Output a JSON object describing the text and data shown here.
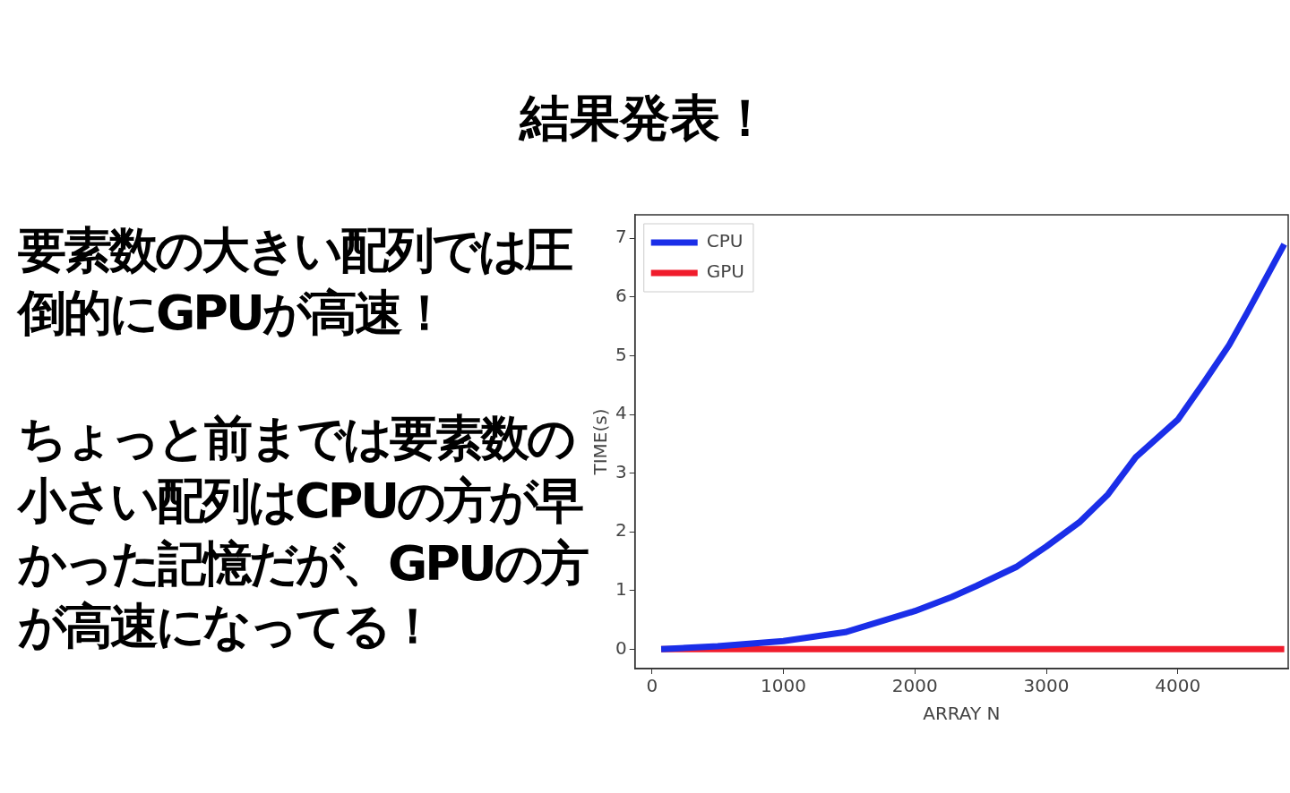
{
  "chart_data": {
    "type": "line",
    "title": "結果発表！",
    "annotations": [
      "要素数の大きい配列では圧倒的にGPUが高速！",
      "ちょっと前までは要素数の小さい配列はCPUの方が早かった記憶だが、GPUの方が高速になってる！"
    ],
    "xlabel": "ARRAY N",
    "ylabel": "TIME(s)",
    "x": [
      70,
      500,
      1000,
      1470,
      2000,
      2280,
      2470,
      2770,
      3000,
      3250,
      3470,
      3680,
      4000,
      4200,
      4390,
      4530,
      4810
    ],
    "series": [
      {
        "name": "CPU",
        "color": "#1a2ee8",
        "values": [
          0.0,
          0.05,
          0.14,
          0.29,
          0.65,
          0.89,
          1.08,
          1.4,
          1.75,
          2.16,
          2.64,
          3.27,
          3.91,
          4.55,
          5.18,
          5.74,
          6.9
        ]
      },
      {
        "name": "GPU",
        "color": "#f01c2c",
        "values": [
          0.0,
          0.0,
          0.0,
          0.0,
          0.0,
          0.0,
          0.0,
          0.0,
          0.0,
          0.0,
          0.0,
          0.0,
          0.0,
          0.0,
          0.0,
          0.0,
          0.0
        ]
      }
    ],
    "xlim": [
      -130,
      4840
    ],
    "xticks": [
      0,
      1000,
      2000,
      3000,
      4000
    ],
    "ylim": [
      -0.33,
      7.4
    ],
    "yticks": [
      0,
      1,
      2,
      3,
      4,
      5,
      6,
      7
    ],
    "grid": false,
    "legend": "top left"
  }
}
